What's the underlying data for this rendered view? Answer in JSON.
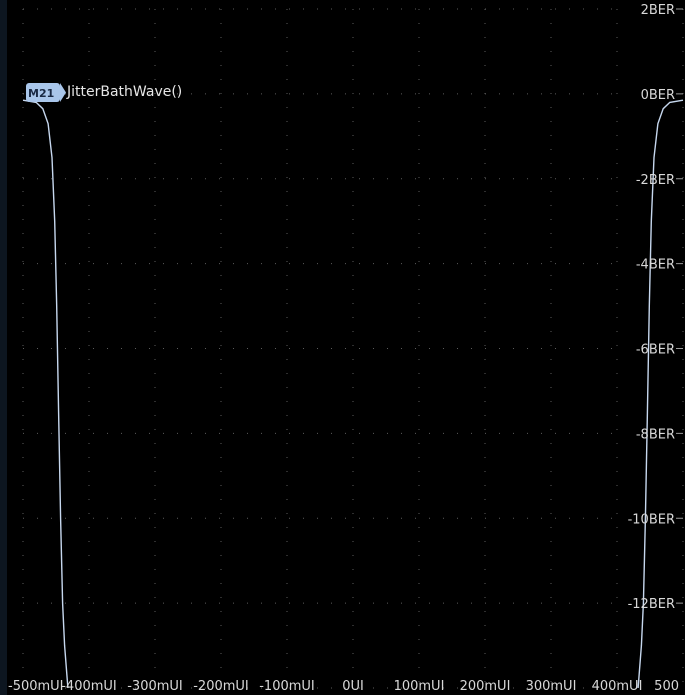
{
  "marker": {
    "badge": "M21",
    "function": "JitterBathWave()"
  },
  "colors": {
    "background": "#000000",
    "trace": "#c6d7ee",
    "grid": "#5c5c5c",
    "badge": "#a9c6ea",
    "text": "#d8d8d8"
  },
  "chart_data": {
    "type": "line",
    "title": "",
    "xlabel": "",
    "ylabel": "",
    "x_ticks": [
      "-500mUI",
      "-400mUI",
      "-300mUI",
      "-200mUI",
      "-100mUI",
      "0UI",
      "100mUI",
      "200mUI",
      "300mUI",
      "400mUI",
      "500"
    ],
    "y_ticks": [
      "2BER",
      "0BER",
      "-2BER",
      "-4BER",
      "-6BER",
      "-8BER",
      "-10BER",
      "-12BER"
    ],
    "xlim": [
      -500,
      500
    ],
    "ylim": [
      -14,
      2
    ],
    "grid": true,
    "series": [
      {
        "name": "",
        "x": [
          -500,
          -480,
          -470,
          -462,
          -456,
          -452,
          -449,
          -446,
          -443,
          -440,
          -437,
          -432
        ],
        "y": [
          -0.15,
          -0.2,
          -0.35,
          -0.7,
          -1.5,
          -3,
          -5,
          -7.5,
          -10,
          -12,
          -13,
          -14
        ]
      },
      {
        "name": "",
        "x": [
          432,
          437,
          440,
          443,
          446,
          449,
          452,
          456,
          462,
          470,
          480,
          500
        ],
        "y": [
          -14,
          -13,
          -12,
          -10,
          -7.5,
          -5,
          -3,
          -1.5,
          -0.7,
          -0.35,
          -0.2,
          -0.15
        ]
      }
    ]
  }
}
